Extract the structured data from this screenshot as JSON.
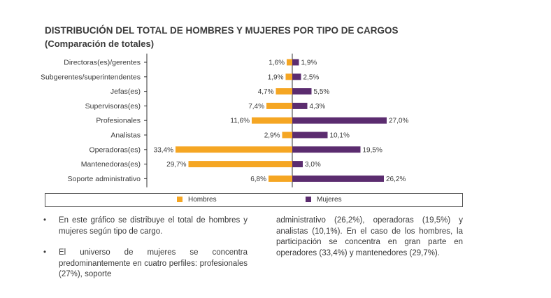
{
  "header": {
    "title": "DISTRIBUCIÓN DEL TOTAL DE HOMBRES Y MUJERES POR TIPO DE CARGOS",
    "subtitle": "(Comparación de totales)"
  },
  "colors": {
    "hombres": "#F5A623",
    "mujeres": "#5B2C6F",
    "axis": "#333333",
    "text": "#3a3a3a"
  },
  "chart_data": {
    "type": "bar",
    "orientation": "horizontal-diverging",
    "categories": [
      "Directoras(es)/gerentes",
      "Subgerentes/superintendentes",
      "Jefas(es)",
      "Supervisoras(es)",
      "Profesionales",
      "Analistas",
      "Operadoras(es)",
      "Mantenedoras(es)",
      "Soporte administrativo"
    ],
    "series": [
      {
        "name": "Hombres",
        "values": [
          1.6,
          1.9,
          4.7,
          7.4,
          11.6,
          2.9,
          33.4,
          29.7,
          6.8
        ],
        "labels": [
          "1,6%",
          "1,9%",
          "4,7%",
          "7,4%",
          "11,6%",
          "2,9%",
          "33,4%",
          "29,7%",
          "6,8%"
        ]
      },
      {
        "name": "Mujeres",
        "values": [
          1.9,
          2.5,
          5.5,
          4.3,
          27.0,
          10.1,
          19.5,
          3.0,
          26.2
        ],
        "labels": [
          "1,9%",
          "2,5%",
          "5,5%",
          "4,3%",
          "27,0%",
          "10,1%",
          "19,5%",
          "3,0%",
          "26,2%"
        ]
      }
    ],
    "legend_position": "bottom",
    "grid": false
  },
  "legend": {
    "hombres_label": "Hombres",
    "mujeres_label": "Mujeres"
  },
  "notes": {
    "bullet_symbol": "•",
    "item1": "En este gráfico se distribuye el total de hombres y mujeres según tipo de cargo.",
    "item2": "El universo de mujeres se concentra predominantemente en cuatro perfiles: profesionales (27%), soporte",
    "item2_continued": "administrativo (26,2%), operadoras (19,5%) y analistas (10,1%). En el caso de los hombres, la participación se concentra en gran parte en operadores (33,4%) y mantenedores (29,7%)."
  }
}
